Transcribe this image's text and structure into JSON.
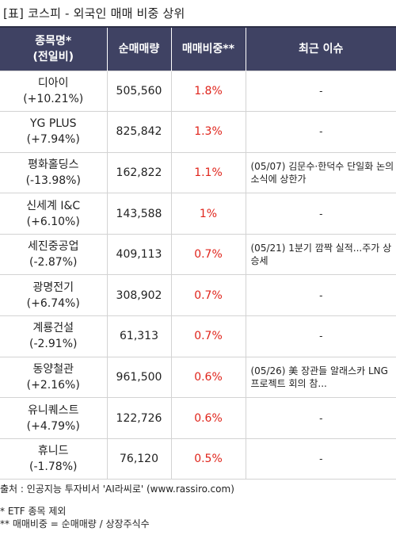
{
  "title": "[표] 코스피 - 외국인 매매 비중 상위",
  "header": {
    "col1_line1": "종목명*",
    "col1_line2": "(전일비)",
    "col2": "순매매량",
    "col3": "매매비중**",
    "col4": "최근 이슈"
  },
  "rows": [
    {
      "name": "디아이",
      "change": "(+10.21%)",
      "volume": "505,560",
      "ratio": "1.8%",
      "issue": "-"
    },
    {
      "name": "YG PLUS",
      "change": "(+7.94%)",
      "volume": "825,842",
      "ratio": "1.3%",
      "issue": "-"
    },
    {
      "name": "평화홀딩스",
      "change": "(-13.98%)",
      "volume": "162,822",
      "ratio": "1.1%",
      "issue": "(05/07) 김문수·한덕수 단일화 논의 소식에 상한가"
    },
    {
      "name": "신세계 I&C",
      "change": "(+6.10%)",
      "volume": "143,588",
      "ratio": "1%",
      "issue": "-"
    },
    {
      "name": "세진중공업",
      "change": "(-2.87%)",
      "volume": "409,113",
      "ratio": "0.7%",
      "issue": "(05/21) 1분기 깜짝 실적...주가 상승세"
    },
    {
      "name": "광명전기",
      "change": "(+6.74%)",
      "volume": "308,902",
      "ratio": "0.7%",
      "issue": "-"
    },
    {
      "name": "계룡건설",
      "change": "(-2.91%)",
      "volume": "61,313",
      "ratio": "0.7%",
      "issue": "-"
    },
    {
      "name": "동양철관",
      "change": "(+2.16%)",
      "volume": "961,500",
      "ratio": "0.6%",
      "issue": "(05/26) 美 장관들 알래스카 LNG 프로젝트 회의 참..."
    },
    {
      "name": "유니퀘스트",
      "change": "(+4.79%)",
      "volume": "122,726",
      "ratio": "0.6%",
      "issue": "-"
    },
    {
      "name": "휴니드",
      "change": "(-1.78%)",
      "volume": "76,120",
      "ratio": "0.5%",
      "issue": "-"
    }
  ],
  "footer": {
    "source": "출처 : 인공지능 투자비서 'AI라씨로' (www.rassiro.com)",
    "note1": "* ETF 종목 제외",
    "note2": "** 매매비중 = 순매매량 / 상장주식수"
  },
  "colors": {
    "header_bg": "#3f4263",
    "ratio_red": "#e0241b"
  }
}
